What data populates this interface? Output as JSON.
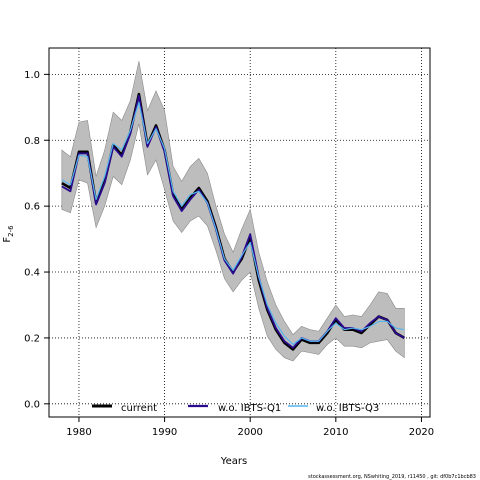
{
  "chart_data": {
    "type": "line",
    "xlabel": "Years",
    "ylabel": "F",
    "ylabel_sub": "2-6",
    "xlim": [
      1976.5,
      2021
    ],
    "ylim": [
      -0.04,
      1.08
    ],
    "xticks": [
      1980,
      1990,
      2000,
      2010,
      2020
    ],
    "yticks": [
      0.0,
      0.2,
      0.4,
      0.6,
      0.8,
      1.0
    ],
    "ytick_labels": [
      "0.0",
      "0.2",
      "0.4",
      "0.6",
      "0.8",
      "1.0"
    ],
    "grid": true,
    "legend_placement": "bottom",
    "years": [
      1978,
      1979,
      1980,
      1981,
      1982,
      1983,
      1984,
      1985,
      1986,
      1987,
      1988,
      1989,
      1990,
      1991,
      1992,
      1993,
      1994,
      1995,
      1996,
      1997,
      1998,
      1999,
      2000,
      2001,
      2002,
      2003,
      2004,
      2005,
      2006,
      2007,
      2008,
      2009,
      2010,
      2011,
      2012,
      2013,
      2014,
      2015,
      2016,
      2017,
      2018
    ],
    "band": {
      "upper": [
        0.77,
        0.75,
        0.855,
        0.86,
        0.69,
        0.77,
        0.885,
        0.86,
        0.92,
        1.04,
        0.89,
        0.95,
        0.89,
        0.72,
        0.675,
        0.72,
        0.745,
        0.7,
        0.6,
        0.515,
        0.46,
        0.53,
        0.59,
        0.46,
        0.37,
        0.3,
        0.25,
        0.21,
        0.235,
        0.225,
        0.22,
        0.26,
        0.3,
        0.265,
        0.27,
        0.265,
        0.3,
        0.34,
        0.335,
        0.29,
        0.29
      ],
      "lower": [
        0.59,
        0.58,
        0.68,
        0.67,
        0.535,
        0.6,
        0.69,
        0.665,
        0.74,
        0.85,
        0.695,
        0.74,
        0.65,
        0.555,
        0.52,
        0.555,
        0.57,
        0.54,
        0.465,
        0.38,
        0.34,
        0.375,
        0.4,
        0.29,
        0.205,
        0.165,
        0.14,
        0.13,
        0.16,
        0.155,
        0.15,
        0.18,
        0.2,
        0.175,
        0.175,
        0.17,
        0.185,
        0.19,
        0.195,
        0.16,
        0.14
      ]
    },
    "series": [
      {
        "name": "current",
        "color": "#000000",
        "values": [
          0.67,
          0.655,
          0.765,
          0.765,
          0.61,
          0.675,
          0.785,
          0.755,
          0.825,
          0.94,
          0.785,
          0.845,
          0.77,
          0.635,
          0.59,
          0.625,
          0.655,
          0.615,
          0.535,
          0.44,
          0.4,
          0.44,
          0.505,
          0.375,
          0.285,
          0.225,
          0.185,
          0.165,
          0.195,
          0.185,
          0.185,
          0.215,
          0.255,
          0.225,
          0.225,
          0.215,
          0.24,
          0.265,
          0.255,
          0.215,
          0.2
        ]
      },
      {
        "name": "w.o. IBTS-Q1",
        "color": "#2a0a8e",
        "values": [
          0.66,
          0.645,
          0.76,
          0.76,
          0.605,
          0.67,
          0.78,
          0.75,
          0.82,
          0.935,
          0.78,
          0.84,
          0.765,
          0.63,
          0.585,
          0.62,
          0.65,
          0.61,
          0.53,
          0.435,
          0.395,
          0.445,
          0.515,
          0.385,
          0.29,
          0.23,
          0.19,
          0.17,
          0.2,
          0.19,
          0.19,
          0.22,
          0.26,
          0.23,
          0.23,
          0.22,
          0.245,
          0.265,
          0.255,
          0.215,
          0.2
        ]
      },
      {
        "name": "w.o. IBTS-Q3",
        "color": "#55b6ee",
        "values": [
          0.68,
          0.665,
          0.755,
          0.75,
          0.62,
          0.69,
          0.79,
          0.77,
          0.83,
          0.915,
          0.79,
          0.835,
          0.775,
          0.645,
          0.6,
          0.635,
          0.645,
          0.61,
          0.53,
          0.44,
          0.405,
          0.45,
          0.49,
          0.385,
          0.3,
          0.245,
          0.205,
          0.18,
          0.2,
          0.19,
          0.19,
          0.22,
          0.245,
          0.225,
          0.23,
          0.225,
          0.235,
          0.25,
          0.25,
          0.23,
          0.225
        ]
      }
    ],
    "band_color": "#bdbdbd"
  },
  "footer_text": "stockassessment.org, NSwhiting_2019, r11450 , git: df0b7c1bcb83"
}
